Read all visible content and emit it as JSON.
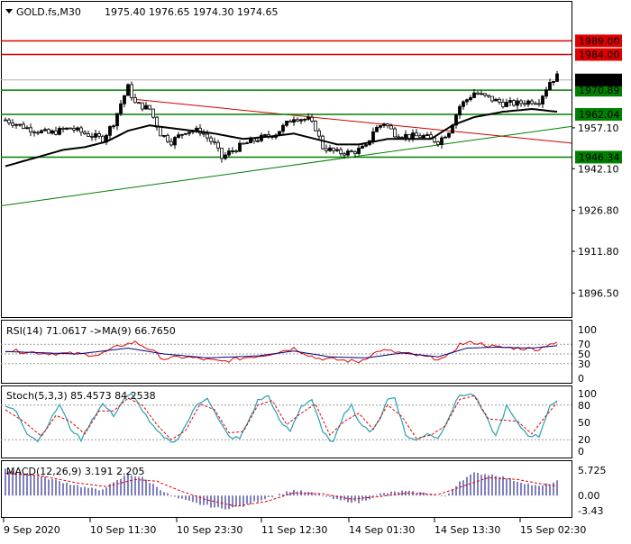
{
  "colors": {
    "bull": "#000000",
    "bear": "#ffffff",
    "level": "#008000",
    "red": "#e00000",
    "ma": "#000000",
    "trend_red": "#d00000",
    "trend_green": "#008000",
    "rsi": "#e00000",
    "rsi_ma": "#000080",
    "stoch_k": "#2a9fb0",
    "stoch_d": "#e00000",
    "macd": "#000080",
    "macd_sig": "#e00000"
  },
  "header": {
    "symbol": "GOLD.fs,M30",
    "ohlc": "1975.40 1976.65 1974.30 1974.65"
  },
  "chart_data": [
    {
      "type": "candlestick",
      "name": "main",
      "price_axis": {
        "min": 1888,
        "max": 2003,
        "ticks": [
          "1957.10",
          "1942.10",
          "1926.80",
          "1911.80",
          "1896.50"
        ]
      },
      "tick_values": [
        1957.1,
        1942.1,
        1926.8,
        1911.8,
        1896.5
      ],
      "levels": [
        {
          "label": "1989.00",
          "value": 1989.0,
          "color": "red"
        },
        {
          "label": "1984.00",
          "value": 1984.0,
          "color": "red"
        },
        {
          "label": "1970.89",
          "value": 1970.89,
          "color": "green"
        },
        {
          "label": "1962.04",
          "value": 1962.04,
          "color": "green"
        },
        {
          "label": "1946.34",
          "value": 1946.34,
          "color": "green"
        }
      ],
      "current_price": {
        "label": "1974.65",
        "value": 1974.65
      },
      "anchors": [
        [
          0,
          1960
        ],
        [
          6,
          1957
        ],
        [
          12,
          1955
        ],
        [
          18,
          1957
        ],
        [
          22,
          1955
        ],
        [
          27,
          1953
        ],
        [
          30,
          1959
        ],
        [
          32,
          1966
        ],
        [
          34,
          1972
        ],
        [
          36,
          1966
        ],
        [
          40,
          1964
        ],
        [
          43,
          1955
        ],
        [
          46,
          1952
        ],
        [
          50,
          1956
        ],
        [
          54,
          1956
        ],
        [
          58,
          1951
        ],
        [
          60,
          1946
        ],
        [
          62,
          1948
        ],
        [
          66,
          1951
        ],
        [
          70,
          1953
        ],
        [
          75,
          1955
        ],
        [
          80,
          1961
        ],
        [
          84,
          1960
        ],
        [
          86,
          1957
        ],
        [
          88,
          1950
        ],
        [
          92,
          1948
        ],
        [
          96,
          1948
        ],
        [
          100,
          1950
        ],
        [
          102,
          1956
        ],
        [
          105,
          1959
        ],
        [
          108,
          1955
        ],
        [
          112,
          1954
        ],
        [
          116,
          1954
        ],
        [
          120,
          1952
        ],
        [
          123,
          1956
        ],
        [
          126,
          1965
        ],
        [
          130,
          1970
        ],
        [
          134,
          1968
        ],
        [
          138,
          1966
        ],
        [
          142,
          1966
        ],
        [
          146,
          1967
        ],
        [
          148,
          1967
        ],
        [
          151,
          1974
        ],
        [
          153,
          1976
        ]
      ],
      "ma_anchors": [
        [
          0,
          1943
        ],
        [
          8,
          1946
        ],
        [
          16,
          1949
        ],
        [
          22,
          1950
        ],
        [
          28,
          1952
        ],
        [
          34,
          1956
        ],
        [
          40,
          1958
        ],
        [
          46,
          1957
        ],
        [
          52,
          1956
        ],
        [
          58,
          1955
        ],
        [
          66,
          1953
        ],
        [
          74,
          1954
        ],
        [
          80,
          1955
        ],
        [
          86,
          1953
        ],
        [
          92,
          1951
        ],
        [
          98,
          1951
        ],
        [
          106,
          1953
        ],
        [
          112,
          1953
        ],
        [
          118,
          1953
        ],
        [
          124,
          1958
        ],
        [
          130,
          1961
        ],
        [
          138,
          1963
        ],
        [
          146,
          1964
        ],
        [
          153,
          1963
        ]
      ]
    },
    {
      "type": "line",
      "name": "rsi",
      "label": "RSI(14) 71.0617  ->MA(9) 66.7650",
      "ylim": [
        0,
        100
      ],
      "ticks": [
        "100",
        "70",
        "50",
        "30",
        "0"
      ],
      "tick_values": [
        100,
        70,
        50,
        30,
        0
      ],
      "anchors": [
        [
          0,
          58
        ],
        [
          10,
          52
        ],
        [
          20,
          50
        ],
        [
          26,
          48
        ],
        [
          32,
          68
        ],
        [
          36,
          74
        ],
        [
          40,
          60
        ],
        [
          44,
          40
        ],
        [
          50,
          44
        ],
        [
          60,
          34
        ],
        [
          66,
          42
        ],
        [
          72,
          48
        ],
        [
          80,
          62
        ],
        [
          86,
          42
        ],
        [
          92,
          38
        ],
        [
          98,
          34
        ],
        [
          104,
          58
        ],
        [
          110,
          52
        ],
        [
          118,
          42
        ],
        [
          122,
          40
        ],
        [
          126,
          70
        ],
        [
          130,
          74
        ],
        [
          136,
          64
        ],
        [
          142,
          62
        ],
        [
          148,
          60
        ],
        [
          151,
          72
        ],
        [
          153,
          71
        ]
      ],
      "ma_anchors": [
        [
          0,
          55
        ],
        [
          20,
          50
        ],
        [
          34,
          62
        ],
        [
          44,
          50
        ],
        [
          56,
          42
        ],
        [
          70,
          46
        ],
        [
          80,
          56
        ],
        [
          90,
          44
        ],
        [
          100,
          42
        ],
        [
          110,
          52
        ],
        [
          120,
          44
        ],
        [
          128,
          62
        ],
        [
          136,
          64
        ],
        [
          146,
          62
        ],
        [
          153,
          67
        ]
      ]
    },
    {
      "type": "line",
      "name": "stoch",
      "label": "Stoch(5,3,3) 85.4573 84.2538",
      "ylim": [
        0,
        100
      ],
      "ticks": [
        "100",
        "80",
        "50",
        "20",
        "0"
      ],
      "tick_values": [
        100,
        80,
        50,
        20,
        0
      ],
      "anchors": [
        [
          0,
          78
        ],
        [
          3,
          70
        ],
        [
          6,
          32
        ],
        [
          9,
          18
        ],
        [
          12,
          48
        ],
        [
          15,
          82
        ],
        [
          18,
          40
        ],
        [
          21,
          20
        ],
        [
          24,
          55
        ],
        [
          27,
          82
        ],
        [
          30,
          62
        ],
        [
          33,
          92
        ],
        [
          35,
          98
        ],
        [
          38,
          72
        ],
        [
          41,
          42
        ],
        [
          44,
          22
        ],
        [
          47,
          15
        ],
        [
          50,
          45
        ],
        [
          53,
          80
        ],
        [
          56,
          94
        ],
        [
          59,
          55
        ],
        [
          62,
          25
        ],
        [
          65,
          22
        ],
        [
          68,
          60
        ],
        [
          70,
          88
        ],
        [
          73,
          96
        ],
        [
          76,
          52
        ],
        [
          79,
          35
        ],
        [
          82,
          78
        ],
        [
          85,
          90
        ],
        [
          88,
          32
        ],
        [
          91,
          15
        ],
        [
          94,
          68
        ],
        [
          96,
          80
        ],
        [
          98,
          52
        ],
        [
          101,
          32
        ],
        [
          104,
          58
        ],
        [
          106,
          90
        ],
        [
          108,
          94
        ],
        [
          111,
          28
        ],
        [
          114,
          18
        ],
        [
          117,
          32
        ],
        [
          120,
          22
        ],
        [
          123,
          60
        ],
        [
          126,
          98
        ],
        [
          130,
          98
        ],
        [
          133,
          62
        ],
        [
          136,
          26
        ],
        [
          139,
          78
        ],
        [
          142,
          48
        ],
        [
          145,
          28
        ],
        [
          148,
          26
        ],
        [
          151,
          80
        ],
        [
          153,
          85
        ]
      ],
      "ma_anchors": [
        [
          0,
          72
        ],
        [
          5,
          52
        ],
        [
          10,
          26
        ],
        [
          14,
          62
        ],
        [
          18,
          52
        ],
        [
          22,
          30
        ],
        [
          26,
          70
        ],
        [
          30,
          70
        ],
        [
          34,
          92
        ],
        [
          38,
          80
        ],
        [
          42,
          46
        ],
        [
          46,
          20
        ],
        [
          50,
          36
        ],
        [
          54,
          82
        ],
        [
          58,
          72
        ],
        [
          62,
          32
        ],
        [
          66,
          34
        ],
        [
          70,
          80
        ],
        [
          74,
          88
        ],
        [
          78,
          46
        ],
        [
          82,
          66
        ],
        [
          86,
          82
        ],
        [
          90,
          28
        ],
        [
          94,
          52
        ],
        [
          98,
          66
        ],
        [
          102,
          38
        ],
        [
          106,
          80
        ],
        [
          110,
          60
        ],
        [
          114,
          22
        ],
        [
          118,
          28
        ],
        [
          122,
          44
        ],
        [
          126,
          90
        ],
        [
          130,
          96
        ],
        [
          134,
          56
        ],
        [
          138,
          54
        ],
        [
          142,
          52
        ],
        [
          146,
          30
        ],
        [
          150,
          62
        ],
        [
          153,
          84
        ]
      ]
    },
    {
      "type": "bar",
      "name": "macd",
      "label": "MACD(12,26,9) 3.191 2.205",
      "ylim": [
        -4.6,
        7.5
      ],
      "ticks": [
        "5.725",
        "0.00",
        "-3.43"
      ],
      "tick_values": [
        5.725,
        0,
        -3.43
      ],
      "anchors": [
        [
          0,
          5.8
        ],
        [
          10,
          4.2
        ],
        [
          20,
          2.2
        ],
        [
          26,
          1.2
        ],
        [
          30,
          2.8
        ],
        [
          34,
          4.8
        ],
        [
          38,
          4.0
        ],
        [
          42,
          2.0
        ],
        [
          46,
          -0.2
        ],
        [
          52,
          -1.6
        ],
        [
          60,
          -3.0
        ],
        [
          66,
          -2.4
        ],
        [
          72,
          -0.6
        ],
        [
          80,
          1.2
        ],
        [
          86,
          0.4
        ],
        [
          92,
          -1.0
        ],
        [
          98,
          -1.6
        ],
        [
          104,
          0.4
        ],
        [
          110,
          1.0
        ],
        [
          118,
          0.4
        ],
        [
          122,
          -0.4
        ],
        [
          126,
          3.2
        ],
        [
          130,
          5.0
        ],
        [
          136,
          4.6
        ],
        [
          142,
          3.2
        ],
        [
          148,
          2.0
        ],
        [
          153,
          3.19
        ]
      ],
      "sig_anchors": [
        [
          0,
          5.0
        ],
        [
          10,
          4.4
        ],
        [
          20,
          2.8
        ],
        [
          28,
          2.0
        ],
        [
          36,
          3.6
        ],
        [
          42,
          3.2
        ],
        [
          48,
          1.2
        ],
        [
          56,
          -1.0
        ],
        [
          64,
          -2.4
        ],
        [
          72,
          -1.4
        ],
        [
          80,
          0.6
        ],
        [
          88,
          0.4
        ],
        [
          96,
          -0.8
        ],
        [
          104,
          -0.2
        ],
        [
          112,
          0.6
        ],
        [
          120,
          0.2
        ],
        [
          128,
          2.4
        ],
        [
          134,
          4.0
        ],
        [
          142,
          3.6
        ],
        [
          150,
          2.4
        ],
        [
          153,
          2.2
        ]
      ]
    }
  ],
  "time_axis": [
    "9 Sep 2020",
    "10 Sep 11:30",
    "10 Sep 23:30",
    "11 Sep 12:30",
    "14 Sep 01:30",
    "14 Sep 13:30",
    "15 Sep 02:30"
  ]
}
